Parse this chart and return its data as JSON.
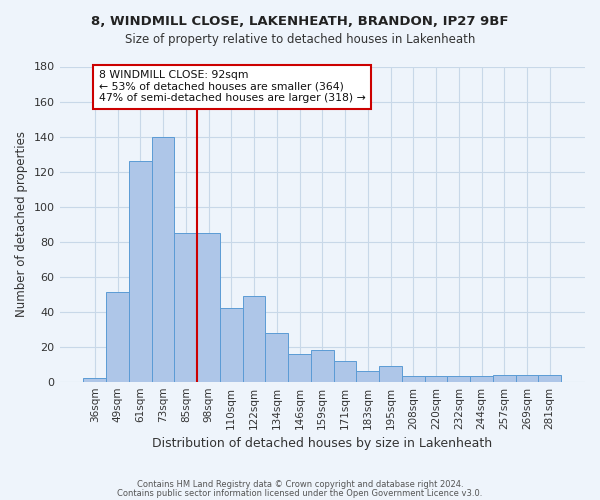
{
  "title1": "8, WINDMILL CLOSE, LAKENHEATH, BRANDON, IP27 9BF",
  "title2": "Size of property relative to detached houses in Lakenheath",
  "xlabel": "Distribution of detached houses by size in Lakenheath",
  "ylabel": "Number of detached properties",
  "categories": [
    "36sqm",
    "49sqm",
    "61sqm",
    "73sqm",
    "85sqm",
    "98sqm",
    "110sqm",
    "122sqm",
    "134sqm",
    "146sqm",
    "159sqm",
    "171sqm",
    "183sqm",
    "195sqm",
    "208sqm",
    "220sqm",
    "232sqm",
    "244sqm",
    "257sqm",
    "269sqm",
    "281sqm"
  ],
  "bar_values": [
    2,
    51,
    126,
    140,
    85,
    85,
    42,
    49,
    28,
    16,
    18,
    12,
    6,
    9,
    3,
    3,
    3,
    3,
    4,
    4,
    4
  ],
  "bar_color": "#aec6e8",
  "bar_edge_color": "#5b9bd5",
  "grid_color": "#c8d8e8",
  "background_color": "#eef4fb",
  "vline_x": 4.5,
  "vline_color": "#cc0000",
  "annotation_title": "8 WINDMILL CLOSE: 92sqm",
  "annotation_line1": "← 53% of detached houses are smaller (364)",
  "annotation_line2": "47% of semi-detached houses are larger (318) →",
  "annotation_box_color": "#ffffff",
  "annotation_box_edge": "#cc0000",
  "ylim": [
    0,
    180
  ],
  "yticks": [
    0,
    20,
    40,
    60,
    80,
    100,
    120,
    140,
    160,
    180
  ],
  "footer1": "Contains HM Land Registry data © Crown copyright and database right 2024.",
  "footer2": "Contains public sector information licensed under the Open Government Licence v3.0."
}
